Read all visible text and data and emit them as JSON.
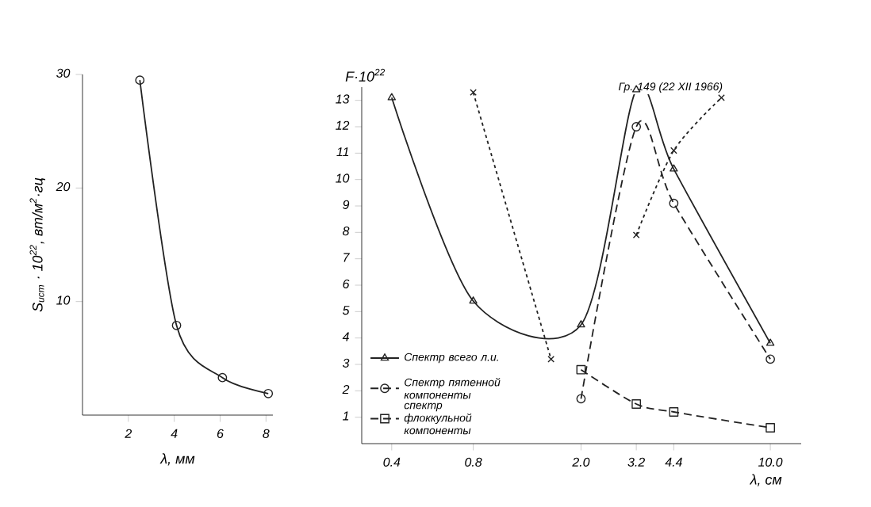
{
  "chart_data": [
    {
      "type": "line",
      "xlabel": "λ, мм",
      "ylabel": "S$_{ист}$ · 10$^{22}$, вт/м$^{2}$·гц",
      "x": [
        2.5,
        4.1,
        6.1,
        8.1
      ],
      "values": [
        29.5,
        7.9,
        3.3,
        1.9
      ],
      "color": "#222222",
      "marker": "circle",
      "line_style": "solid",
      "xlim": [
        0,
        8.3
      ],
      "ylim": [
        0,
        30
      ],
      "xticks": [
        2,
        4,
        6,
        8
      ],
      "yticks": [
        10,
        20,
        30
      ]
    },
    {
      "type": "line",
      "ylabel": "F·10$^{22}$",
      "xlabel": "λ, см",
      "log": "x",
      "xlim": [
        0.31,
        13
      ],
      "ylim": [
        0,
        13.5
      ],
      "xticks": [
        0.4,
        0.8,
        {
          "value": 2,
          "label": "2.0"
        },
        3.2,
        4.4,
        {
          "value": 10,
          "label": "10.0"
        }
      ],
      "yticks": [
        1,
        2,
        3,
        4,
        5,
        6,
        7,
        8,
        9,
        10,
        11,
        12,
        13
      ],
      "legend": "bottom left",
      "annotations": [
        {
          "text": "Гр. 149 (22 XII 1966)",
          "x": 6.6,
          "y": 13.1
        }
      ],
      "series": [
        {
          "name": "Спектр всего л.и.",
          "color": "#222222",
          "marker": "triangle",
          "line_style": "solid",
          "x": [
            0.4,
            0.8,
            2.0,
            3.2,
            4.4,
            10.0
          ],
          "values": [
            13.1,
            5.4,
            4.5,
            13.4,
            10.4,
            3.8
          ]
        },
        {
          "name": "Спектр пятенной компоненты",
          "color": "#222222",
          "marker": "circle",
          "line_style": "dashed",
          "x": [
            2.0,
            3.2,
            4.4,
            10.0
          ],
          "values": [
            1.7,
            12.0,
            9.1,
            3.2
          ]
        },
        {
          "name": "спектр флоккульной компоненты",
          "color": "#222222",
          "marker": "square",
          "line_style": "dashed",
          "x": [
            2.0,
            3.2,
            4.4,
            10.0
          ],
          "values": [
            2.8,
            1.5,
            1.2,
            0.6
          ]
        },
        {
          "color": "#222222",
          "marker": "cross",
          "line_style": "dotted",
          "x": [
            0.8,
            1.55,
            2.0,
            3.2,
            4.4,
            6.6
          ],
          "values": [
            13.3,
            3.2,
            null,
            7.9,
            11.1,
            13.1
          ]
        }
      ]
    }
  ]
}
